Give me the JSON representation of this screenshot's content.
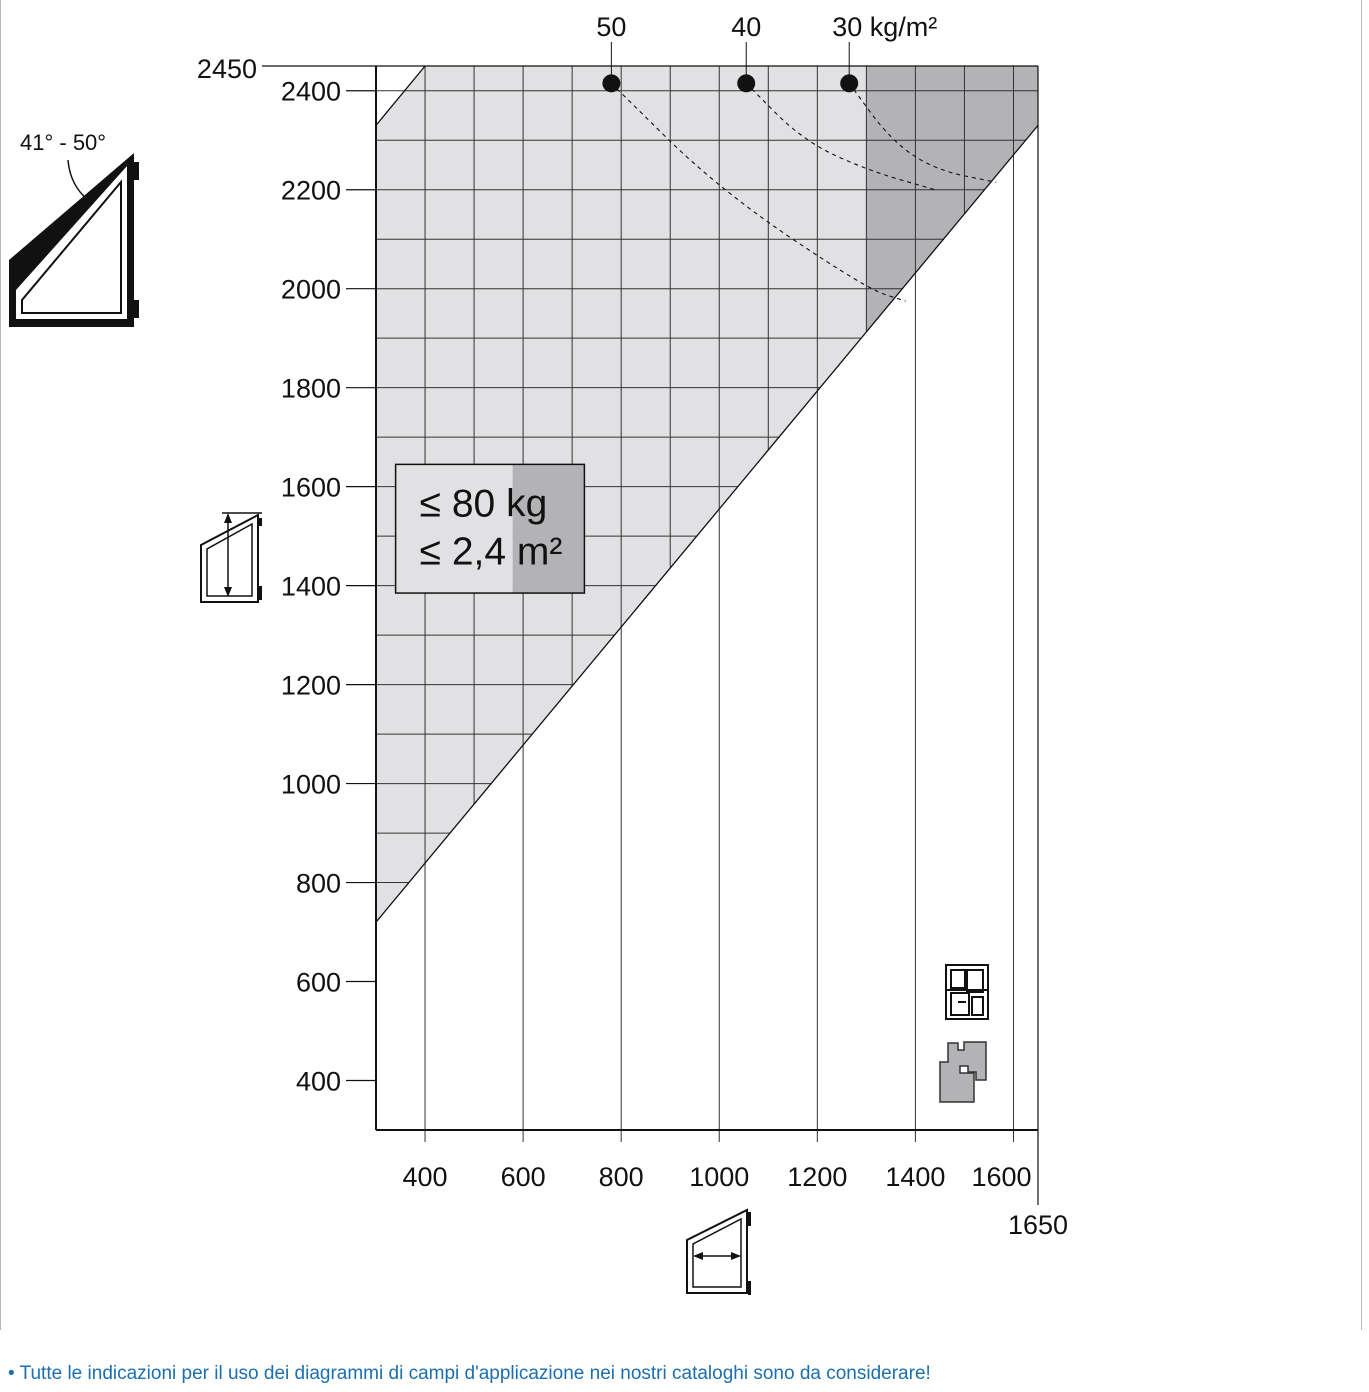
{
  "chart_data": {
    "type": "area",
    "xlim": [
      300,
      1650
    ],
    "ylim": [
      300,
      2450
    ],
    "x_ticks": [
      400,
      600,
      800,
      1000,
      1200,
      1400,
      1600
    ],
    "x_tick_labels": [
      "400",
      "600",
      "800",
      "1000",
      "1200",
      "1400",
      "1600"
    ],
    "x_max_label": "1650",
    "y_ticks": [
      400,
      600,
      800,
      1000,
      1200,
      1400,
      1600,
      1800,
      2000,
      2200,
      2400
    ],
    "y_tick_labels": [
      "400",
      "600",
      "800",
      "1000",
      "1200",
      "1400",
      "1600",
      "1800",
      "2000",
      "2200",
      "2400"
    ],
    "y_max_label": "2450",
    "grid": true,
    "grid_step": 100,
    "diagonal": {
      "from": [
        300,
        720
      ],
      "to": [
        1650,
        2330
      ]
    },
    "admissible_region": {
      "polygon": [
        [
          300,
          720
        ],
        [
          300,
          2330
        ],
        [
          400,
          2450
        ],
        [
          1650,
          2450
        ],
        [
          1650,
          2330
        ]
      ],
      "color": "#e1e1e3"
    },
    "heavy_region": {
      "x_from": 1300,
      "color": "#b3b3b6"
    },
    "weight_curves": [
      {
        "label": "50",
        "marker": [
          780,
          2415
        ],
        "points": [
          [
            780,
            2415
          ],
          [
            1000,
            2200
          ],
          [
            1300,
            2000
          ],
          [
            1380,
            1975
          ]
        ]
      },
      {
        "label": "40",
        "marker": [
          1055,
          2415
        ],
        "points": [
          [
            1055,
            2415
          ],
          [
            1170,
            2300
          ],
          [
            1300,
            2240
          ],
          [
            1440,
            2200
          ]
        ]
      },
      {
        "label": "30",
        "marker": [
          1265,
          2415
        ],
        "points": [
          [
            1265,
            2415
          ],
          [
            1350,
            2300
          ],
          [
            1440,
            2240
          ],
          [
            1565,
            2215
          ]
        ]
      }
    ],
    "weight_unit": "kg/m²",
    "limits_box": {
      "line1": "≤ 80 kg",
      "line2": "≤ 2,4 m²",
      "x_range": [
        340,
        725
      ],
      "y_range": [
        1385,
        1645
      ]
    },
    "angle_label": "41° - 50°"
  },
  "footnote": "• Tutte le indicazioni per il uso dei diagrammi di campi d'applicazione nei nostri cataloghi sono da considerare!",
  "colors": {
    "axis": "#111111",
    "grid": "#333333",
    "light_fill": "#e1e1e3",
    "dark_fill": "#b3b3b6",
    "footnote": "#1b6fae"
  },
  "icons": [
    "sash-angle-icon",
    "sash-height-icon",
    "sash-width-icon",
    "pvc-profile-icon",
    "wood-profile-icon"
  ]
}
